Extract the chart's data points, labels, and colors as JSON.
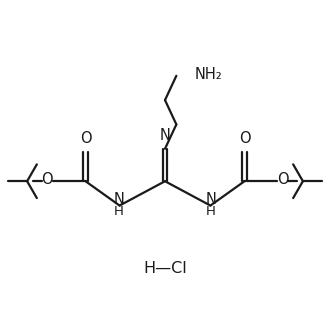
{
  "bg_color": "#ffffff",
  "line_color": "#1a1a1a",
  "line_width": 1.6,
  "font_size": 10.5,
  "figsize": [
    3.3,
    3.3
  ],
  "dpi": 100,
  "xlim": [
    0,
    10
  ],
  "ylim": [
    0,
    10
  ],
  "hcl_x": 5.0,
  "hcl_y": 1.8,
  "hcl_text": "H—Cl"
}
